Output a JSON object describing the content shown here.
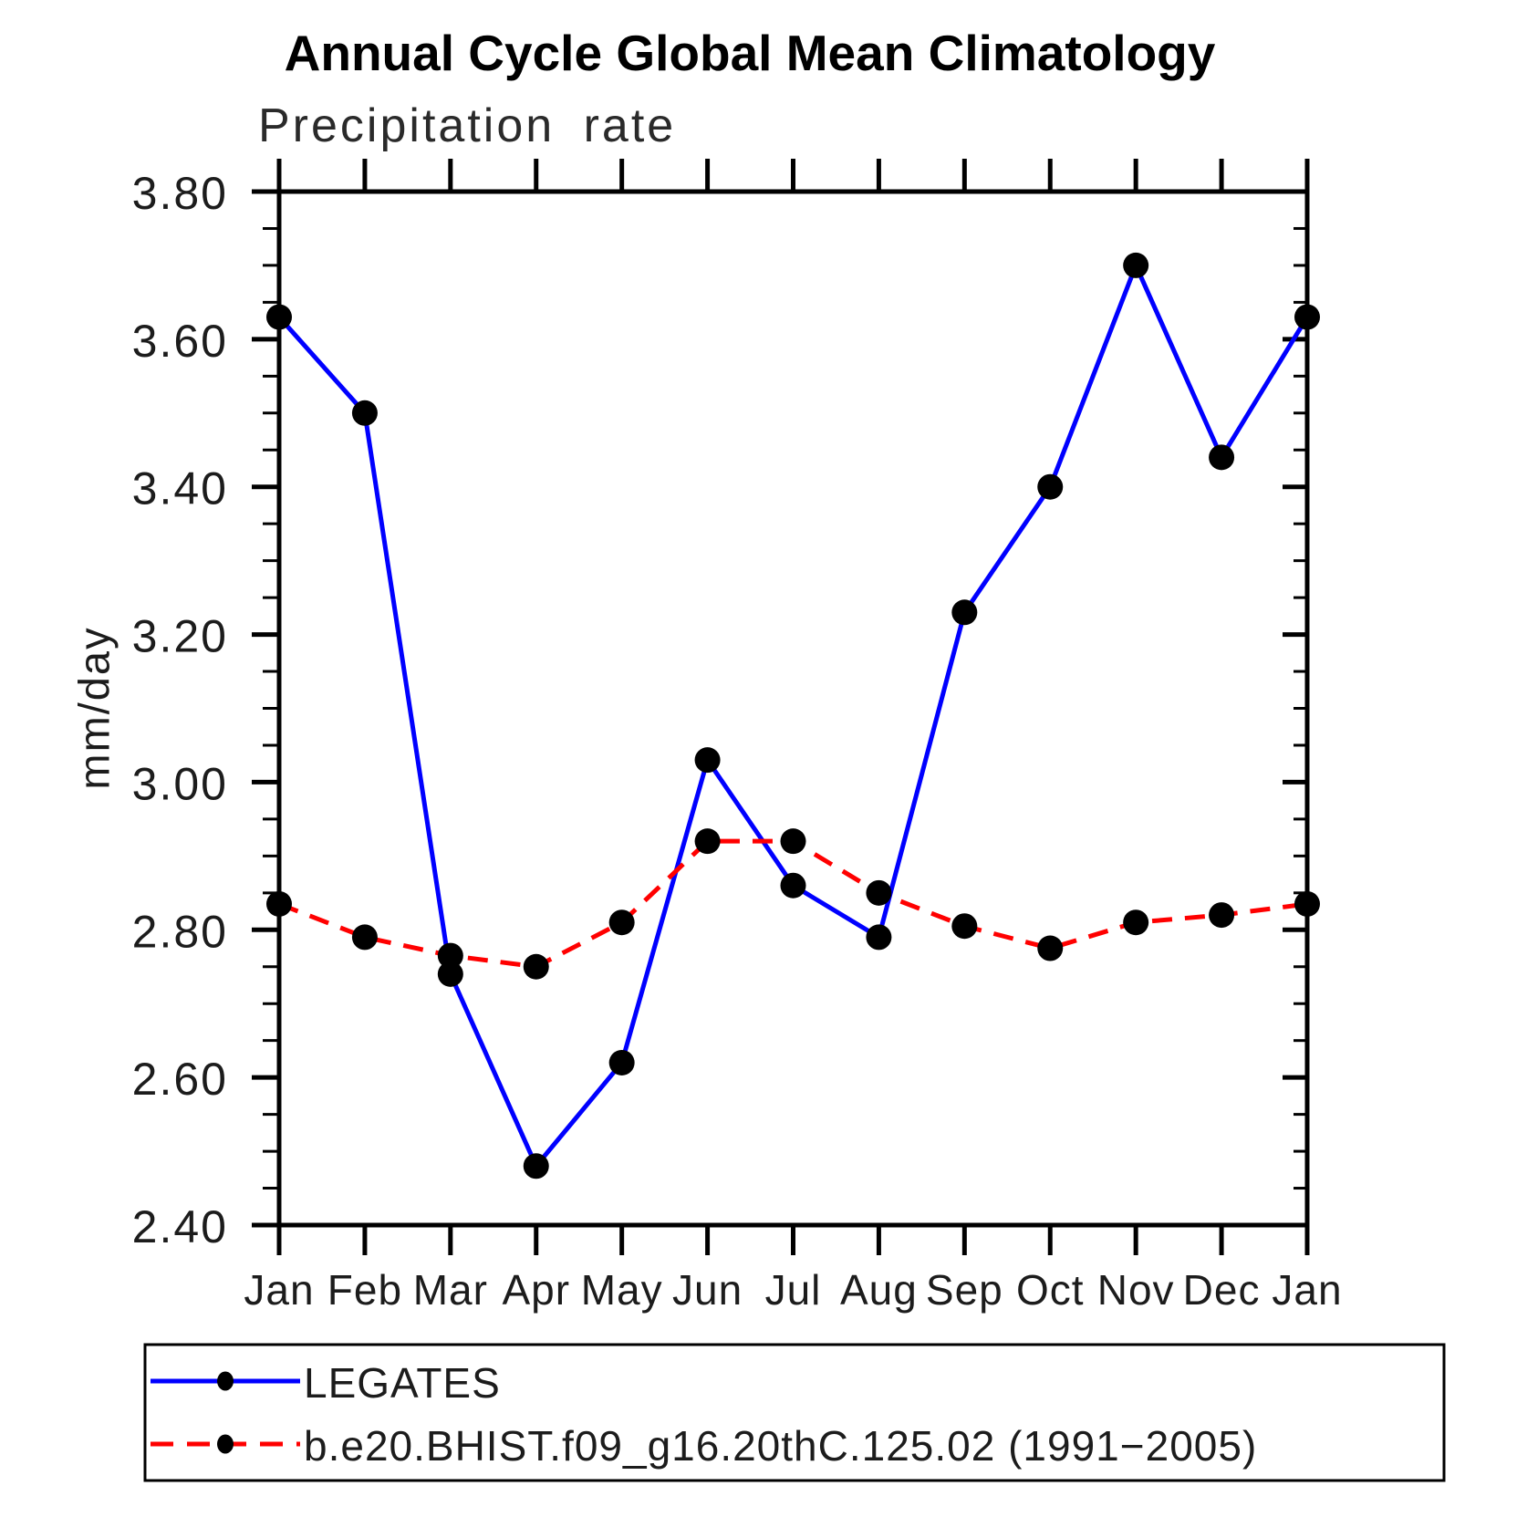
{
  "header": {
    "title": "Annual Cycle Global Mean Climatology",
    "subtitle": "Precipitation rate"
  },
  "chart_data": {
    "type": "line",
    "title": "Annual Cycle Global Mean Climatology",
    "subtitle": "Precipitation rate",
    "xlabel": "",
    "ylabel": "mm/day",
    "categories": [
      "Jan",
      "Feb",
      "Mar",
      "Apr",
      "May",
      "Jun",
      "Jul",
      "Aug",
      "Sep",
      "Oct",
      "Nov",
      "Dec",
      "Jan"
    ],
    "ylim": [
      2.4,
      3.8
    ],
    "y_major_step": 0.2,
    "y_minor_step": 0.05,
    "grid": false,
    "legend_position": "bottom",
    "axis_color": "#000000",
    "series": [
      {
        "name": "LEGATES",
        "color": "#0000ff",
        "style": "solid",
        "marker": "circle",
        "marker_color": "#000000",
        "values": [
          3.63,
          3.5,
          2.74,
          2.48,
          2.62,
          3.03,
          2.86,
          2.79,
          3.23,
          3.4,
          3.7,
          3.44,
          3.63
        ]
      },
      {
        "name": "b.e20.BHIST.f09_g16.20thC.125.02 (1991−2005)",
        "color": "#ff0000",
        "style": "dashed",
        "marker": "circle",
        "marker_color": "#000000",
        "values": [
          2.835,
          2.79,
          2.765,
          2.75,
          2.81,
          2.92,
          2.92,
          2.85,
          2.805,
          2.775,
          2.81,
          2.82,
          2.835
        ]
      }
    ]
  }
}
